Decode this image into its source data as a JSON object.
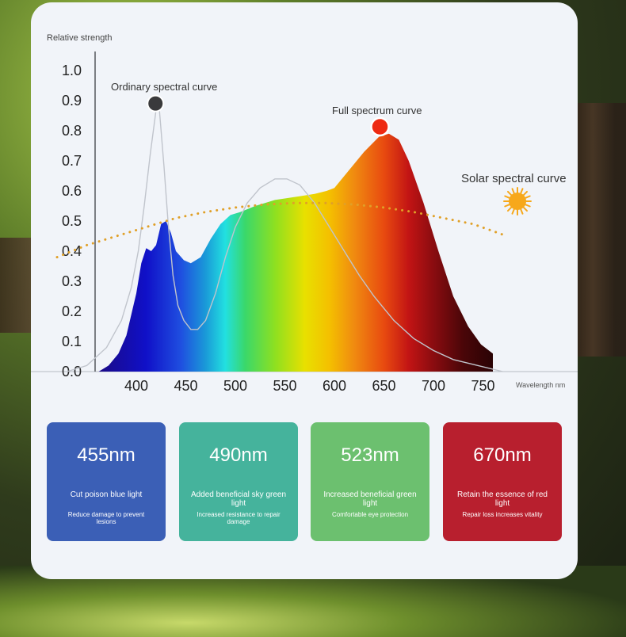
{
  "chart_data": {
    "type": "area",
    "ylabel": "Relative strength",
    "xlabel": "Wavelength nm",
    "y_ticks": [
      "0.0",
      "0.1",
      "0.2",
      "0.3",
      "0.4",
      "0.5",
      "0.6",
      "0.7",
      "0.8",
      "0.9",
      "1.0"
    ],
    "x_ticks": [
      "400",
      "450",
      "500",
      "550",
      "600",
      "650",
      "700",
      "750"
    ],
    "ylim": [
      0,
      1.0
    ],
    "xlim": [
      350,
      780
    ],
    "series": [
      {
        "name": "Full spectrum curve",
        "style": "filled rainbow area",
        "points": [
          [
            362,
            0.0
          ],
          [
            372,
            0.02
          ],
          [
            382,
            0.06
          ],
          [
            390,
            0.12
          ],
          [
            400,
            0.26
          ],
          [
            405,
            0.36
          ],
          [
            410,
            0.41
          ],
          [
            415,
            0.4
          ],
          [
            420,
            0.42
          ],
          [
            425,
            0.49
          ],
          [
            430,
            0.5
          ],
          [
            435,
            0.46
          ],
          [
            440,
            0.4
          ],
          [
            448,
            0.37
          ],
          [
            455,
            0.36
          ],
          [
            465,
            0.38
          ],
          [
            475,
            0.44
          ],
          [
            485,
            0.49
          ],
          [
            495,
            0.52
          ],
          [
            505,
            0.53
          ],
          [
            520,
            0.55
          ],
          [
            540,
            0.57
          ],
          [
            560,
            0.58
          ],
          [
            580,
            0.59
          ],
          [
            592,
            0.6
          ],
          [
            600,
            0.61
          ],
          [
            615,
            0.67
          ],
          [
            630,
            0.73
          ],
          [
            645,
            0.78
          ],
          [
            655,
            0.79
          ],
          [
            665,
            0.77
          ],
          [
            675,
            0.7
          ],
          [
            690,
            0.56
          ],
          [
            705,
            0.4
          ],
          [
            720,
            0.25
          ],
          [
            735,
            0.15
          ],
          [
            748,
            0.09
          ],
          [
            760,
            0.06
          ],
          [
            760,
            0.0
          ]
        ]
      },
      {
        "name": "Ordinary spectral curve",
        "style": "thin gray line",
        "points": [
          [
            330,
            0.0
          ],
          [
            350,
            0.02
          ],
          [
            370,
            0.08
          ],
          [
            385,
            0.17
          ],
          [
            395,
            0.28
          ],
          [
            402,
            0.4
          ],
          [
            408,
            0.55
          ],
          [
            414,
            0.72
          ],
          [
            420,
            0.87
          ],
          [
            423,
            0.88
          ],
          [
            425,
            0.8
          ],
          [
            428,
            0.68
          ],
          [
            432,
            0.5
          ],
          [
            437,
            0.32
          ],
          [
            442,
            0.22
          ],
          [
            448,
            0.17
          ],
          [
            455,
            0.14
          ],
          [
            462,
            0.14
          ],
          [
            470,
            0.17
          ],
          [
            480,
            0.26
          ],
          [
            490,
            0.38
          ],
          [
            500,
            0.48
          ],
          [
            512,
            0.56
          ],
          [
            525,
            0.61
          ],
          [
            540,
            0.64
          ],
          [
            552,
            0.64
          ],
          [
            565,
            0.62
          ],
          [
            580,
            0.56
          ],
          [
            595,
            0.48
          ],
          [
            610,
            0.4
          ],
          [
            625,
            0.32
          ],
          [
            640,
            0.25
          ],
          [
            660,
            0.17
          ],
          [
            680,
            0.11
          ],
          [
            700,
            0.07
          ],
          [
            720,
            0.04
          ],
          [
            745,
            0.02
          ],
          [
            770,
            0.0
          ]
        ]
      },
      {
        "name": "Solar spectral curve",
        "style": "orange dotted line",
        "points": [
          [
            320,
            0.38
          ],
          [
            350,
            0.42
          ],
          [
            380,
            0.45
          ],
          [
            410,
            0.48
          ],
          [
            440,
            0.51
          ],
          [
            470,
            0.53
          ],
          [
            500,
            0.545
          ],
          [
            530,
            0.555
          ],
          [
            560,
            0.56
          ],
          [
            590,
            0.56
          ],
          [
            620,
            0.555
          ],
          [
            650,
            0.545
          ],
          [
            680,
            0.53
          ],
          [
            710,
            0.51
          ],
          [
            740,
            0.49
          ],
          [
            770,
            0.455
          ]
        ]
      }
    ],
    "annotations": [
      {
        "text": "Ordinary spectral curve",
        "marker": "dark gray dot",
        "at": [
          421,
          0.88
        ]
      },
      {
        "text": "Full spectrum curve",
        "marker": "red dot",
        "at": [
          646,
          0.8
        ]
      },
      {
        "text": "Solar spectral curve",
        "marker": "sun",
        "at": [
          735,
          0.56
        ]
      }
    ],
    "colors": {
      "gray_curve": "#c0c4cc",
      "solar_dots": "#e0a028",
      "red_marker": "#ee2a12",
      "gray_marker": "#3a3a3c",
      "sun": "#f7a81b"
    }
  },
  "features": [
    {
      "wavelength": "455nm",
      "line1": "Cut poison blue light",
      "line2": "Reduce damage to prevent lesions",
      "color": "#3b5fb6"
    },
    {
      "wavelength": "490nm",
      "line1": "Added beneficial sky green light",
      "line2": "Increased resistance to repair damage",
      "color": "#45b39c"
    },
    {
      "wavelength": "523nm",
      "line1": "Increased beneficial green light",
      "line2": "Comfortable eye protection",
      "color": "#6cc06f"
    },
    {
      "wavelength": "670nm",
      "line1": "Retain the essence of red light",
      "line2": "Repair loss increases vitality",
      "color": "#b81f2e"
    }
  ]
}
